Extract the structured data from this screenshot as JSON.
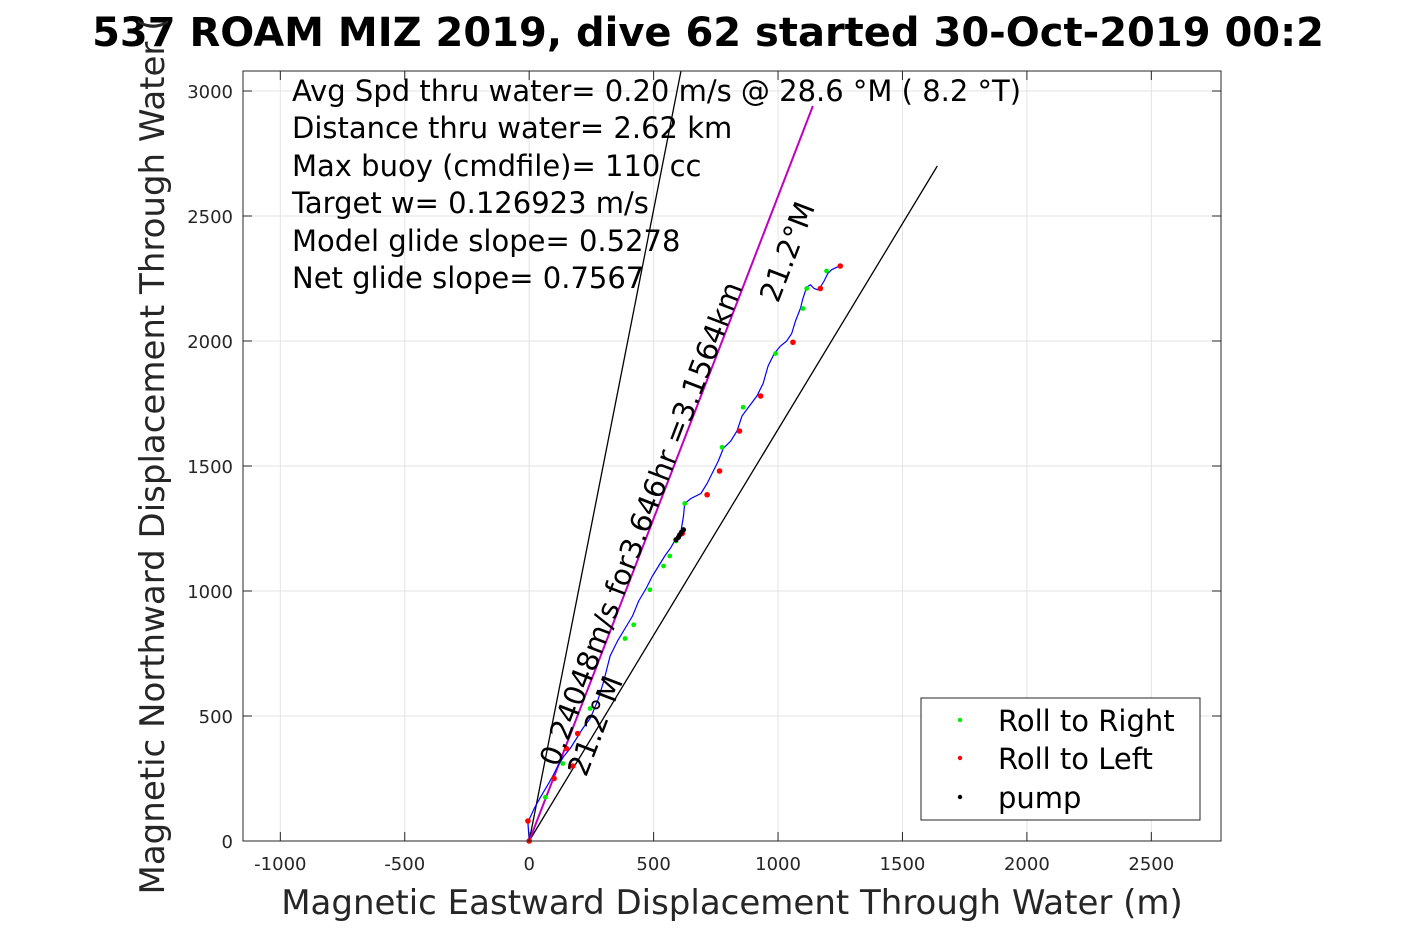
{
  "chart_data": {
    "type": "scatter",
    "title": "537 ROAM MIZ 2019, dive 62 started 30-Oct-2019 00:2",
    "xlabel": "Magnetic Eastward Displacement Through Water (m)",
    "ylabel": "Magnetic Northward Displacement Through Water (",
    "xlim": [
      -1150,
      2780
    ],
    "ylim": [
      0,
      3080
    ],
    "xticks": [
      -1000,
      -500,
      0,
      500,
      1000,
      1500,
      2000,
      2500
    ],
    "yticks": [
      0,
      500,
      1000,
      1500,
      2000,
      2500,
      3000
    ],
    "grid": true,
    "stats": [
      "Avg Spd thru water=  0.20 m/s @  28.6 °M (  8.2 °T)",
      "Distance thru water=  2.62 km",
      "Max buoy (cmdfile)= 110 cc",
      "Target w= 0.126923 m/s",
      "Model glide slope= 0.5278",
      "Net glide slope= 0.7567"
    ],
    "annotations": {
      "transit_label": "0.24048m/s for3.646hr =3.1564km",
      "heading_upper": "21.2°M",
      "heading_lower": "21.2°M"
    },
    "lines": [
      {
        "name": "",
        "color": "#000000",
        "x": [
          0,
          610
        ],
        "y": [
          0,
          3080
        ]
      },
      {
        "name": "",
        "color": "#000000",
        "x": [
          0,
          1640
        ],
        "y": [
          0,
          2700
        ]
      },
      {
        "name": "",
        "color": "#c000c0",
        "x": [
          0,
          1140
        ],
        "y": [
          0,
          2940
        ]
      }
    ],
    "track": {
      "color": "#0000ff",
      "x": [
        0,
        -5,
        20,
        45,
        75,
        95,
        115,
        140,
        165,
        190,
        215,
        245,
        275,
        300,
        325,
        355,
        385,
        415,
        440,
        470,
        495,
        520,
        545,
        570,
        590,
        610,
        620,
        625,
        650,
        690,
        715,
        740,
        760,
        780,
        810,
        835,
        855,
        885,
        915,
        940,
        960,
        985,
        1010,
        1035,
        1055,
        1070,
        1090,
        1100,
        1110,
        1115,
        1130,
        1145,
        1160,
        1170,
        1185,
        1200,
        1215,
        1235,
        1250
      ],
      "y": [
        0,
        75,
        130,
        175,
        225,
        260,
        300,
        340,
        370,
        410,
        450,
        490,
        560,
        640,
        740,
        800,
        850,
        900,
        960,
        1010,
        1060,
        1100,
        1140,
        1175,
        1210,
        1240,
        1300,
        1350,
        1370,
        1390,
        1430,
        1480,
        1520,
        1570,
        1600,
        1640,
        1700,
        1740,
        1780,
        1830,
        1900,
        1950,
        1980,
        2000,
        2030,
        2080,
        2130,
        2170,
        2200,
        2215,
        2225,
        2210,
        2205,
        2215,
        2240,
        2270,
        2285,
        2295,
        2300
      ]
    },
    "roll_right": {
      "color": "#00ee00",
      "x": [
        65,
        135,
        245,
        385,
        420,
        485,
        540,
        565,
        590,
        625,
        775,
        860,
        990,
        1100,
        1115,
        1195
      ],
      "y": [
        175,
        310,
        530,
        810,
        865,
        1005,
        1100,
        1140,
        1200,
        1350,
        1575,
        1735,
        1950,
        2130,
        2210,
        2280
      ]
    },
    "roll_left": {
      "color": "#ff0000",
      "x": [
        0,
        -5,
        100,
        150,
        175,
        195,
        615,
        715,
        765,
        845,
        930,
        1060,
        1170,
        1250
      ],
      "y": [
        0,
        80,
        250,
        370,
        300,
        430,
        1230,
        1385,
        1480,
        1640,
        1780,
        1995,
        2210,
        2300
      ]
    },
    "pump": {
      "color": "#000000",
      "x": [
        590,
        600,
        605,
        612,
        620
      ],
      "y": [
        1205,
        1215,
        1225,
        1235,
        1245
      ]
    },
    "legend": {
      "placement": "bottom-right",
      "entries": [
        {
          "label": "Roll to Right",
          "color": "#00ee00"
        },
        {
          "label": "Roll to Left",
          "color": "#ff0000"
        },
        {
          "label": "pump",
          "color": "#000000"
        }
      ]
    }
  }
}
